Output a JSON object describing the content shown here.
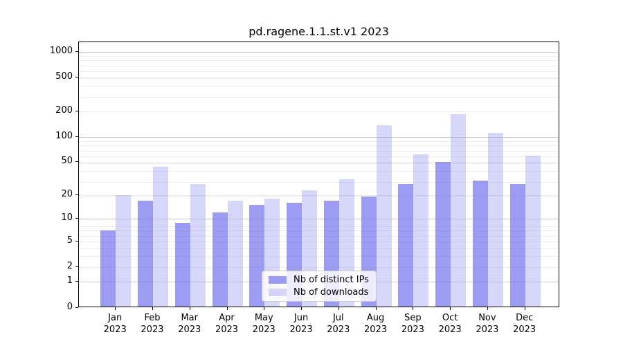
{
  "chart_data": {
    "type": "bar",
    "title": "pd.ragene.1.1.st.v1 2023",
    "categories": [
      "Jan",
      "Feb",
      "Mar",
      "Apr",
      "May",
      "Jun",
      "Jul",
      "Aug",
      "Sep",
      "Oct",
      "Nov",
      "Dec"
    ],
    "year": "2023",
    "series": [
      {
        "name": "Nb of distinct IPs",
        "values": [
          7,
          17,
          9,
          12,
          15,
          16,
          17,
          19,
          27,
          50,
          30,
          27
        ],
        "fill": "rgba(100,100,235,0.64)"
      },
      {
        "name": "Nb of downloads",
        "values": [
          20,
          44,
          27,
          17,
          18,
          23,
          31,
          139,
          62,
          187,
          113,
          60
        ],
        "fill": "rgba(160,160,240,0.42)"
      }
    ],
    "xlabel": "",
    "ylabel": "",
    "y_scale": "log10(value+1)",
    "y_ticks": [
      1000,
      500,
      200,
      100,
      50,
      20,
      10,
      5,
      2,
      1,
      0
    ],
    "major_grid_values": [
      1,
      10,
      100,
      1000
    ],
    "ylim": [
      0,
      1300
    ],
    "grid": true,
    "legend_position": "lower center"
  },
  "colors": {
    "background": "#ffffff",
    "axis": "#000000",
    "grid_major": "#c6c6c6",
    "grid_minor": "#ededed",
    "legend_border": "#cccccc"
  }
}
